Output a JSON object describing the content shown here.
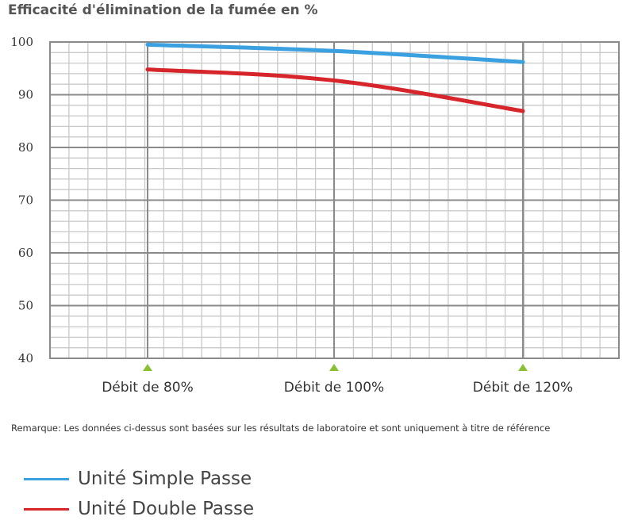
{
  "chart_data": {
    "type": "line",
    "title": "Efficacité d'élimination de la fumée en %",
    "categories": [
      "Débit de 80%",
      "Débit de 100%",
      "Débit de 120%"
    ],
    "series": [
      {
        "name": "Unité Simple Passe",
        "color": "#3aa0e0",
        "values": [
          99.5,
          98.3,
          96.2
        ]
      },
      {
        "name": "Unité Double Passe",
        "color": "#d7262b",
        "values": [
          94.8,
          92.7,
          86.9
        ]
      }
    ],
    "ylim": [
      40,
      100
    ],
    "yticks": [
      40,
      50,
      60,
      70,
      80,
      90,
      100
    ],
    "grid": true,
    "legend": "bottom-left",
    "note": "Remarque: Les données ci-dessus sont basées sur les résultats de laboratoire et sont uniquement à titre de référence"
  }
}
